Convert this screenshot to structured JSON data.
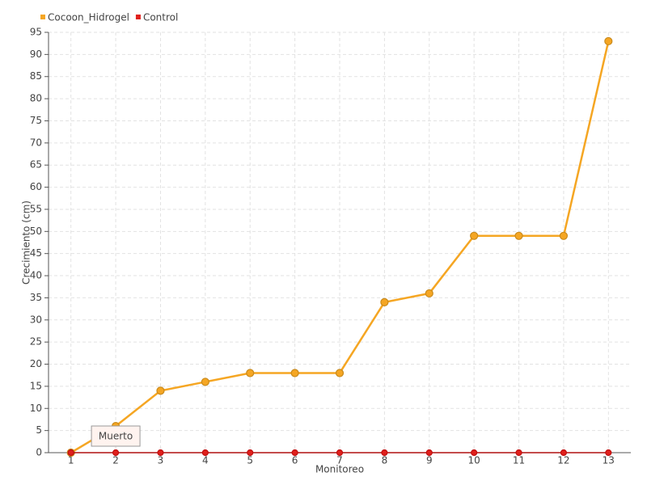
{
  "chart_data": {
    "type": "line",
    "x_label": "Monitoreo",
    "y_label": "Crecimiento (cm)",
    "categories": [
      "1",
      "2",
      "3",
      "4",
      "5",
      "6",
      "7",
      "8",
      "9",
      "10",
      "11",
      "12",
      "13"
    ],
    "series": [
      {
        "name": "Cocoon_Hidrogel",
        "color": "#f5a623",
        "values": [
          0,
          6,
          14,
          16,
          18,
          18,
          18,
          34,
          36,
          49,
          49,
          49,
          93
        ]
      },
      {
        "name": "Control",
        "color": "#e0201c",
        "values": [
          0,
          0,
          0,
          0,
          0,
          0,
          0,
          0,
          0,
          0,
          0,
          0,
          0
        ]
      }
    ],
    "annotation": {
      "text": "Muerto",
      "category": "2"
    },
    "ylim": [
      0,
      95
    ],
    "yticks": [
      0,
      5,
      10,
      15,
      20,
      25,
      30,
      35,
      40,
      45,
      50,
      55,
      60,
      65,
      70,
      75,
      80,
      85,
      90,
      95
    ],
    "grid": true,
    "legend": "top-left"
  }
}
